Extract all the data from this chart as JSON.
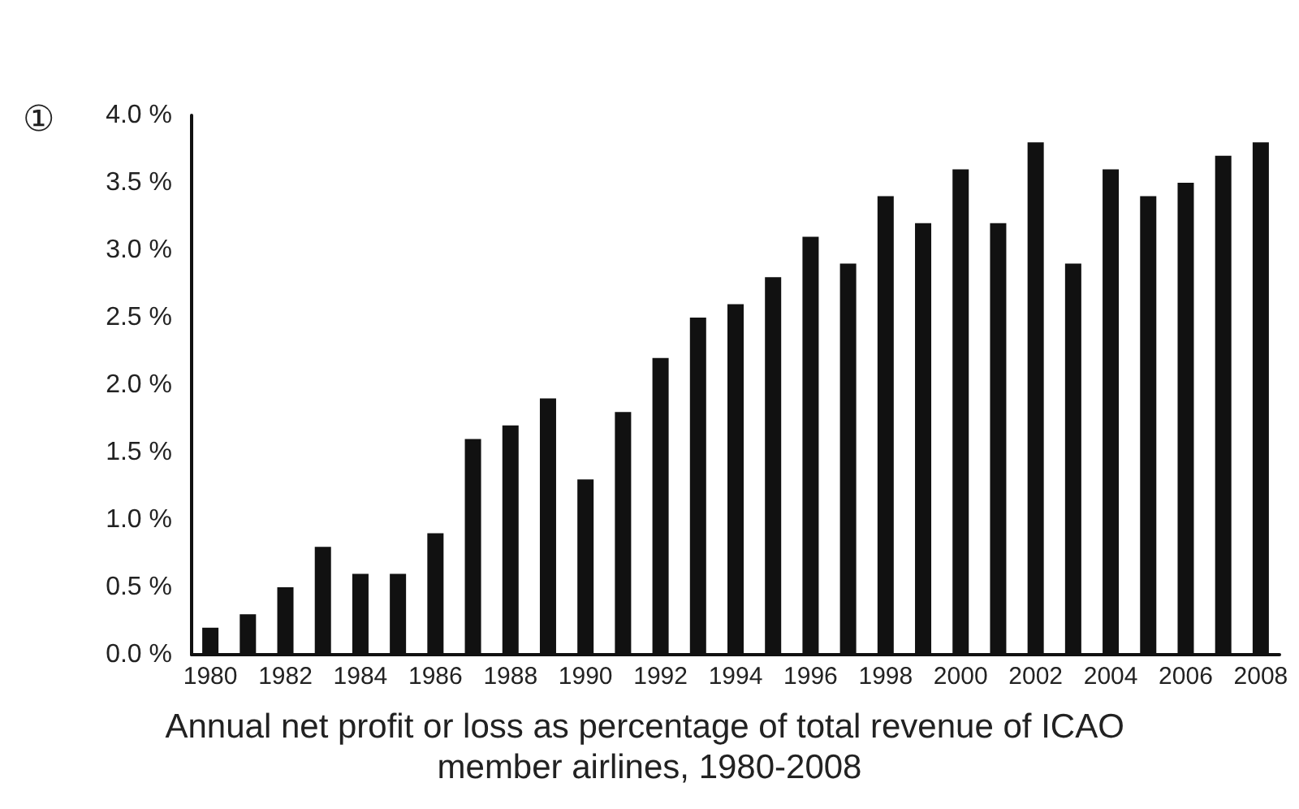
{
  "chart_data": {
    "type": "bar",
    "title": "Annual net profit or loss as percentage of total revenue of ICAO member airlines, 1980-2008",
    "annotations": [
      "①"
    ],
    "categories": [
      "1980",
      null,
      "1982",
      null,
      "1984",
      null,
      "1986",
      null,
      "1988",
      null,
      "1990",
      null,
      "1992",
      null,
      "1994",
      null,
      "1996",
      null,
      "1998",
      null,
      "2000",
      null,
      "2002",
      null,
      "2004",
      null,
      "2006",
      null,
      "2008"
    ],
    "values": [
      0.2,
      0.3,
      0.5,
      0.8,
      0.6,
      0.6,
      0.9,
      1.6,
      1.7,
      1.9,
      1.3,
      1.8,
      2.2,
      2.5,
      2.6,
      2.8,
      3.1,
      2.9,
      3.4,
      3.2,
      3.6,
      3.2,
      3.8,
      2.9,
      3.6,
      3.4,
      3.5,
      3.7,
      3.8
    ],
    "color": "#111111",
    "ylim": [
      0,
      4
    ],
    "yticks": [
      {
        "value": 0,
        "label": "0.0 %"
      },
      {
        "value": 0.5,
        "label": "0.5 %"
      },
      {
        "value": 1,
        "label": "1.0 %"
      },
      {
        "value": 1.5,
        "label": "1.5 %"
      },
      {
        "value": 2,
        "label": "2.0 %"
      },
      {
        "value": 2.5,
        "label": "2.5 %"
      },
      {
        "value": 3,
        "label": "3.0 %"
      },
      {
        "value": 3.5,
        "label": "3.5 %"
      },
      {
        "value": 4,
        "label": "4.0 %"
      }
    ],
    "grid": false
  }
}
